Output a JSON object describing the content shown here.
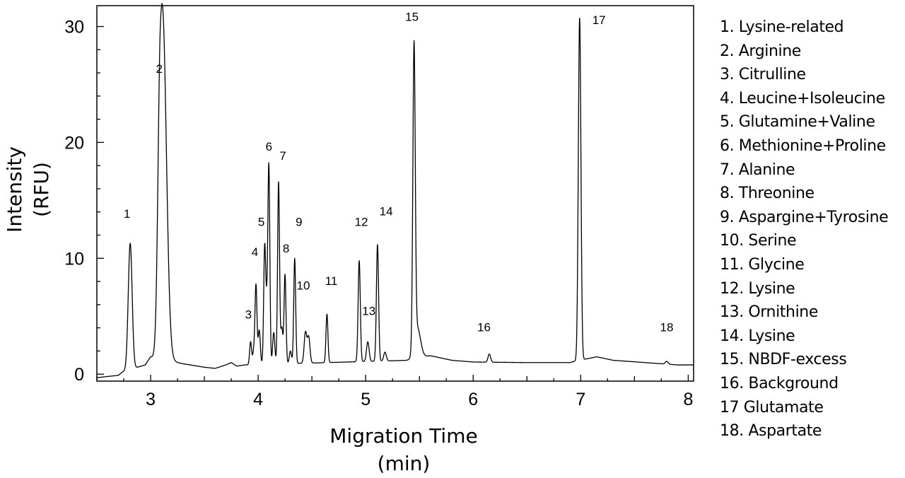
{
  "chart_data": {
    "type": "line",
    "xlabel": [
      "Migration Time",
      "(min)"
    ],
    "ylabel": [
      "Intensity",
      "(RFU)"
    ],
    "xlim": [
      2.5,
      8.05
    ],
    "ylim": [
      -0.6,
      31.8
    ],
    "xticks": [
      3,
      4,
      5,
      6,
      7,
      8
    ],
    "yticks": [
      0,
      10,
      20,
      30
    ],
    "grid": false,
    "legend_position": "right",
    "baseline": [
      [
        2.5,
        -0.3
      ],
      [
        2.6,
        -0.2
      ],
      [
        2.7,
        -0.1
      ],
      [
        2.74,
        0.2
      ],
      [
        2.95,
        0.8
      ],
      [
        3.0,
        1.5
      ],
      [
        3.3,
        0.9
      ],
      [
        3.5,
        0.6
      ],
      [
        3.6,
        0.5
      ],
      [
        3.7,
        0.8
      ],
      [
        3.75,
        1.0
      ],
      [
        3.8,
        0.7
      ],
      [
        3.88,
        0.8
      ],
      [
        5.4,
        1.2
      ],
      [
        5.6,
        1.6
      ],
      [
        5.8,
        1.2
      ],
      [
        6.0,
        1.05
      ],
      [
        6.5,
        1.0
      ],
      [
        6.9,
        1.0
      ],
      [
        6.94,
        1.1
      ],
      [
        7.15,
        1.5
      ],
      [
        7.3,
        1.2
      ],
      [
        7.6,
        1.0
      ],
      [
        7.9,
        0.8
      ],
      [
        8.05,
        0.8
      ]
    ],
    "peaks": [
      {
        "label": "1",
        "x": 2.81,
        "y": 11.3,
        "w": 0.018,
        "label_x": 2.78,
        "label_y": 13.5
      },
      {
        "label": "2",
        "x": 3.09,
        "y": 24.0,
        "w": 0.022,
        "tail": 0.9,
        "label_x": 3.08,
        "label_y": 26.0
      },
      {
        "label": "3",
        "x": 3.93,
        "y": 2.8,
        "w": 0.009,
        "label_x": 3.91,
        "label_y": 4.8
      },
      {
        "label": "4",
        "x": 3.98,
        "y": 7.6,
        "w": 0.009,
        "label_x": 3.97,
        "label_y": 10.2
      },
      {
        "label": "5",
        "x": 4.06,
        "y": 10.0,
        "w": 0.009,
        "label_x": 4.03,
        "label_y": 12.8
      },
      {
        "label": "6",
        "x": 4.1,
        "y": 17.0,
        "w": 0.009,
        "label_x": 4.1,
        "label_y": 19.3
      },
      {
        "label": "7",
        "x": 4.19,
        "y": 16.6,
        "w": 0.009,
        "label_x": 4.23,
        "label_y": 18.5
      },
      {
        "label": "8",
        "x": 4.25,
        "y": 8.6,
        "w": 0.009,
        "label_x": 4.26,
        "label_y": 10.5
      },
      {
        "label": "9",
        "x": 4.34,
        "y": 10.0,
        "w": 0.009,
        "label_x": 4.38,
        "label_y": 12.8
      },
      {
        "label": "10",
        "x": 4.44,
        "y": 3.6,
        "w": 0.012,
        "label_x": 4.42,
        "label_y": 7.3
      },
      {
        "label": "11",
        "x": 4.64,
        "y": 5.2,
        "w": 0.009,
        "label_x": 4.68,
        "label_y": 7.7
      },
      {
        "label": "12",
        "x": 4.94,
        "y": 9.8,
        "w": 0.01,
        "label_x": 4.96,
        "label_y": 12.8
      },
      {
        "label": "13",
        "x": 5.02,
        "y": 2.8,
        "w": 0.012,
        "label_x": 5.03,
        "label_y": 5.1
      },
      {
        "label": "14",
        "x": 5.11,
        "y": 11.2,
        "w": 0.01,
        "label_x": 5.19,
        "label_y": 13.7
      },
      {
        "label": "15",
        "x": 5.45,
        "y": 27.2,
        "w": 0.011,
        "label_x": 5.43,
        "label_y": 30.5
      },
      {
        "label": "16",
        "x": 6.15,
        "y": 0.7,
        "w": 0.012,
        "label_x": 6.1,
        "label_y": 3.7
      },
      {
        "label": "17",
        "x": 6.99,
        "y": 30.8,
        "w": 0.012,
        "label_x": 7.17,
        "label_y": 30.2
      },
      {
        "label": "18",
        "x": 7.8,
        "y": 1.1,
        "w": 0.013,
        "label_x": 7.8,
        "label_y": 3.7
      }
    ],
    "minor_peaks": [
      {
        "x": 3.125,
        "y": 13.0,
        "w": 0.03
      },
      {
        "x": 3.96,
        "y": 2.0,
        "w": 0.01
      },
      {
        "x": 4.01,
        "y": 3.8,
        "w": 0.01
      },
      {
        "x": 4.08,
        "y": 5.6,
        "w": 0.012
      },
      {
        "x": 4.145,
        "y": 3.6,
        "w": 0.01
      },
      {
        "x": 4.22,
        "y": 4.0,
        "w": 0.01
      },
      {
        "x": 4.3,
        "y": 2.0,
        "w": 0.01
      },
      {
        "x": 4.47,
        "y": 3.2,
        "w": 0.012
      },
      {
        "x": 5.18,
        "y": 1.9,
        "w": 0.012
      },
      {
        "x": 5.48,
        "y": 4.0,
        "w": 0.03
      }
    ],
    "legend": [
      "1. Lysine-related",
      "2. Arginine",
      "3. Citrulline",
      "4. Leucine+Isoleucine",
      "5. Glutamine+Valine",
      "6. Methionine+Proline",
      "7. Alanine",
      "8. Threonine",
      "9. Aspargine+Tyrosine",
      "10. Serine",
      "11. Glycine",
      "12. Lysine",
      "13. Ornithine",
      "14. Lysine",
      "15. NBDF-excess",
      "16. Background",
      "17 Glutamate",
      "18. Aspartate"
    ],
    "line_color": "#000000"
  }
}
